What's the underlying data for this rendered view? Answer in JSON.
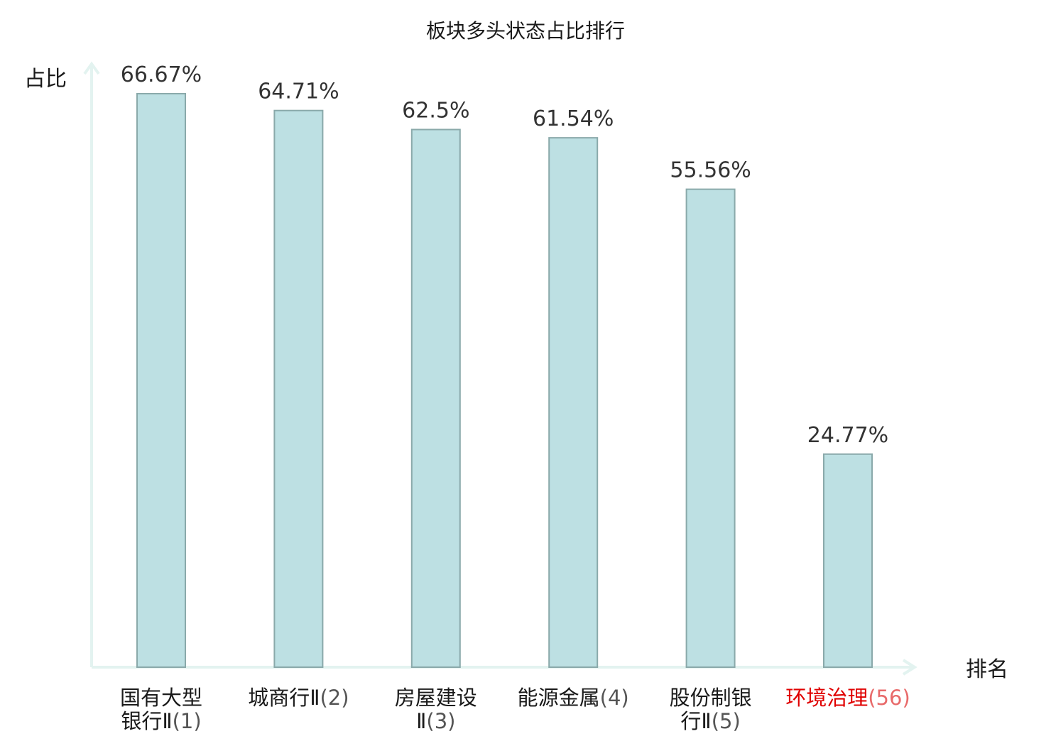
{
  "chart_data": {
    "type": "bar",
    "title": "板块多头状态占比排行",
    "ylabel": "占比",
    "xlabel": "排名",
    "ylim": [
      0,
      70
    ],
    "grid": false,
    "legend": "none",
    "value_suffix": "%",
    "categories": [
      {
        "lines": [
          {
            "name": "国有大型",
            "rank": ""
          },
          {
            "name": "银行Ⅱ",
            "rank": "(1)"
          }
        ],
        "highlight": false
      },
      {
        "lines": [
          {
            "name": "城商行Ⅱ",
            "rank": "(2)"
          }
        ],
        "highlight": false
      },
      {
        "lines": [
          {
            "name": "房屋建设",
            "rank": ""
          },
          {
            "name": "Ⅱ",
            "rank": "(3)"
          }
        ],
        "highlight": false
      },
      {
        "lines": [
          {
            "name": "能源金属",
            "rank": "(4)"
          }
        ],
        "highlight": false
      },
      {
        "lines": [
          {
            "name": "股份制银",
            "rank": ""
          },
          {
            "name": "行Ⅱ",
            "rank": "(5)"
          }
        ],
        "highlight": false
      },
      {
        "lines": [
          {
            "name": "环境治理",
            "rank": "(56)"
          }
        ],
        "highlight": true
      }
    ],
    "values": [
      66.67,
      64.71,
      62.5,
      61.54,
      55.56,
      24.77
    ],
    "value_labels": [
      "66.67%",
      "64.71%",
      "62.5%",
      "61.54%",
      "55.56%",
      "24.77%"
    ],
    "colors": {
      "bar_fill": "#bde0e3",
      "bar_stroke": "#8aa9aa",
      "axis": "#e3f3f0",
      "highlight_text": "#e00000",
      "highlight_rank": "#e86a6a",
      "normal_text": "#1a1a1a",
      "rank_text": "#555555",
      "value_text": "#333333"
    }
  }
}
